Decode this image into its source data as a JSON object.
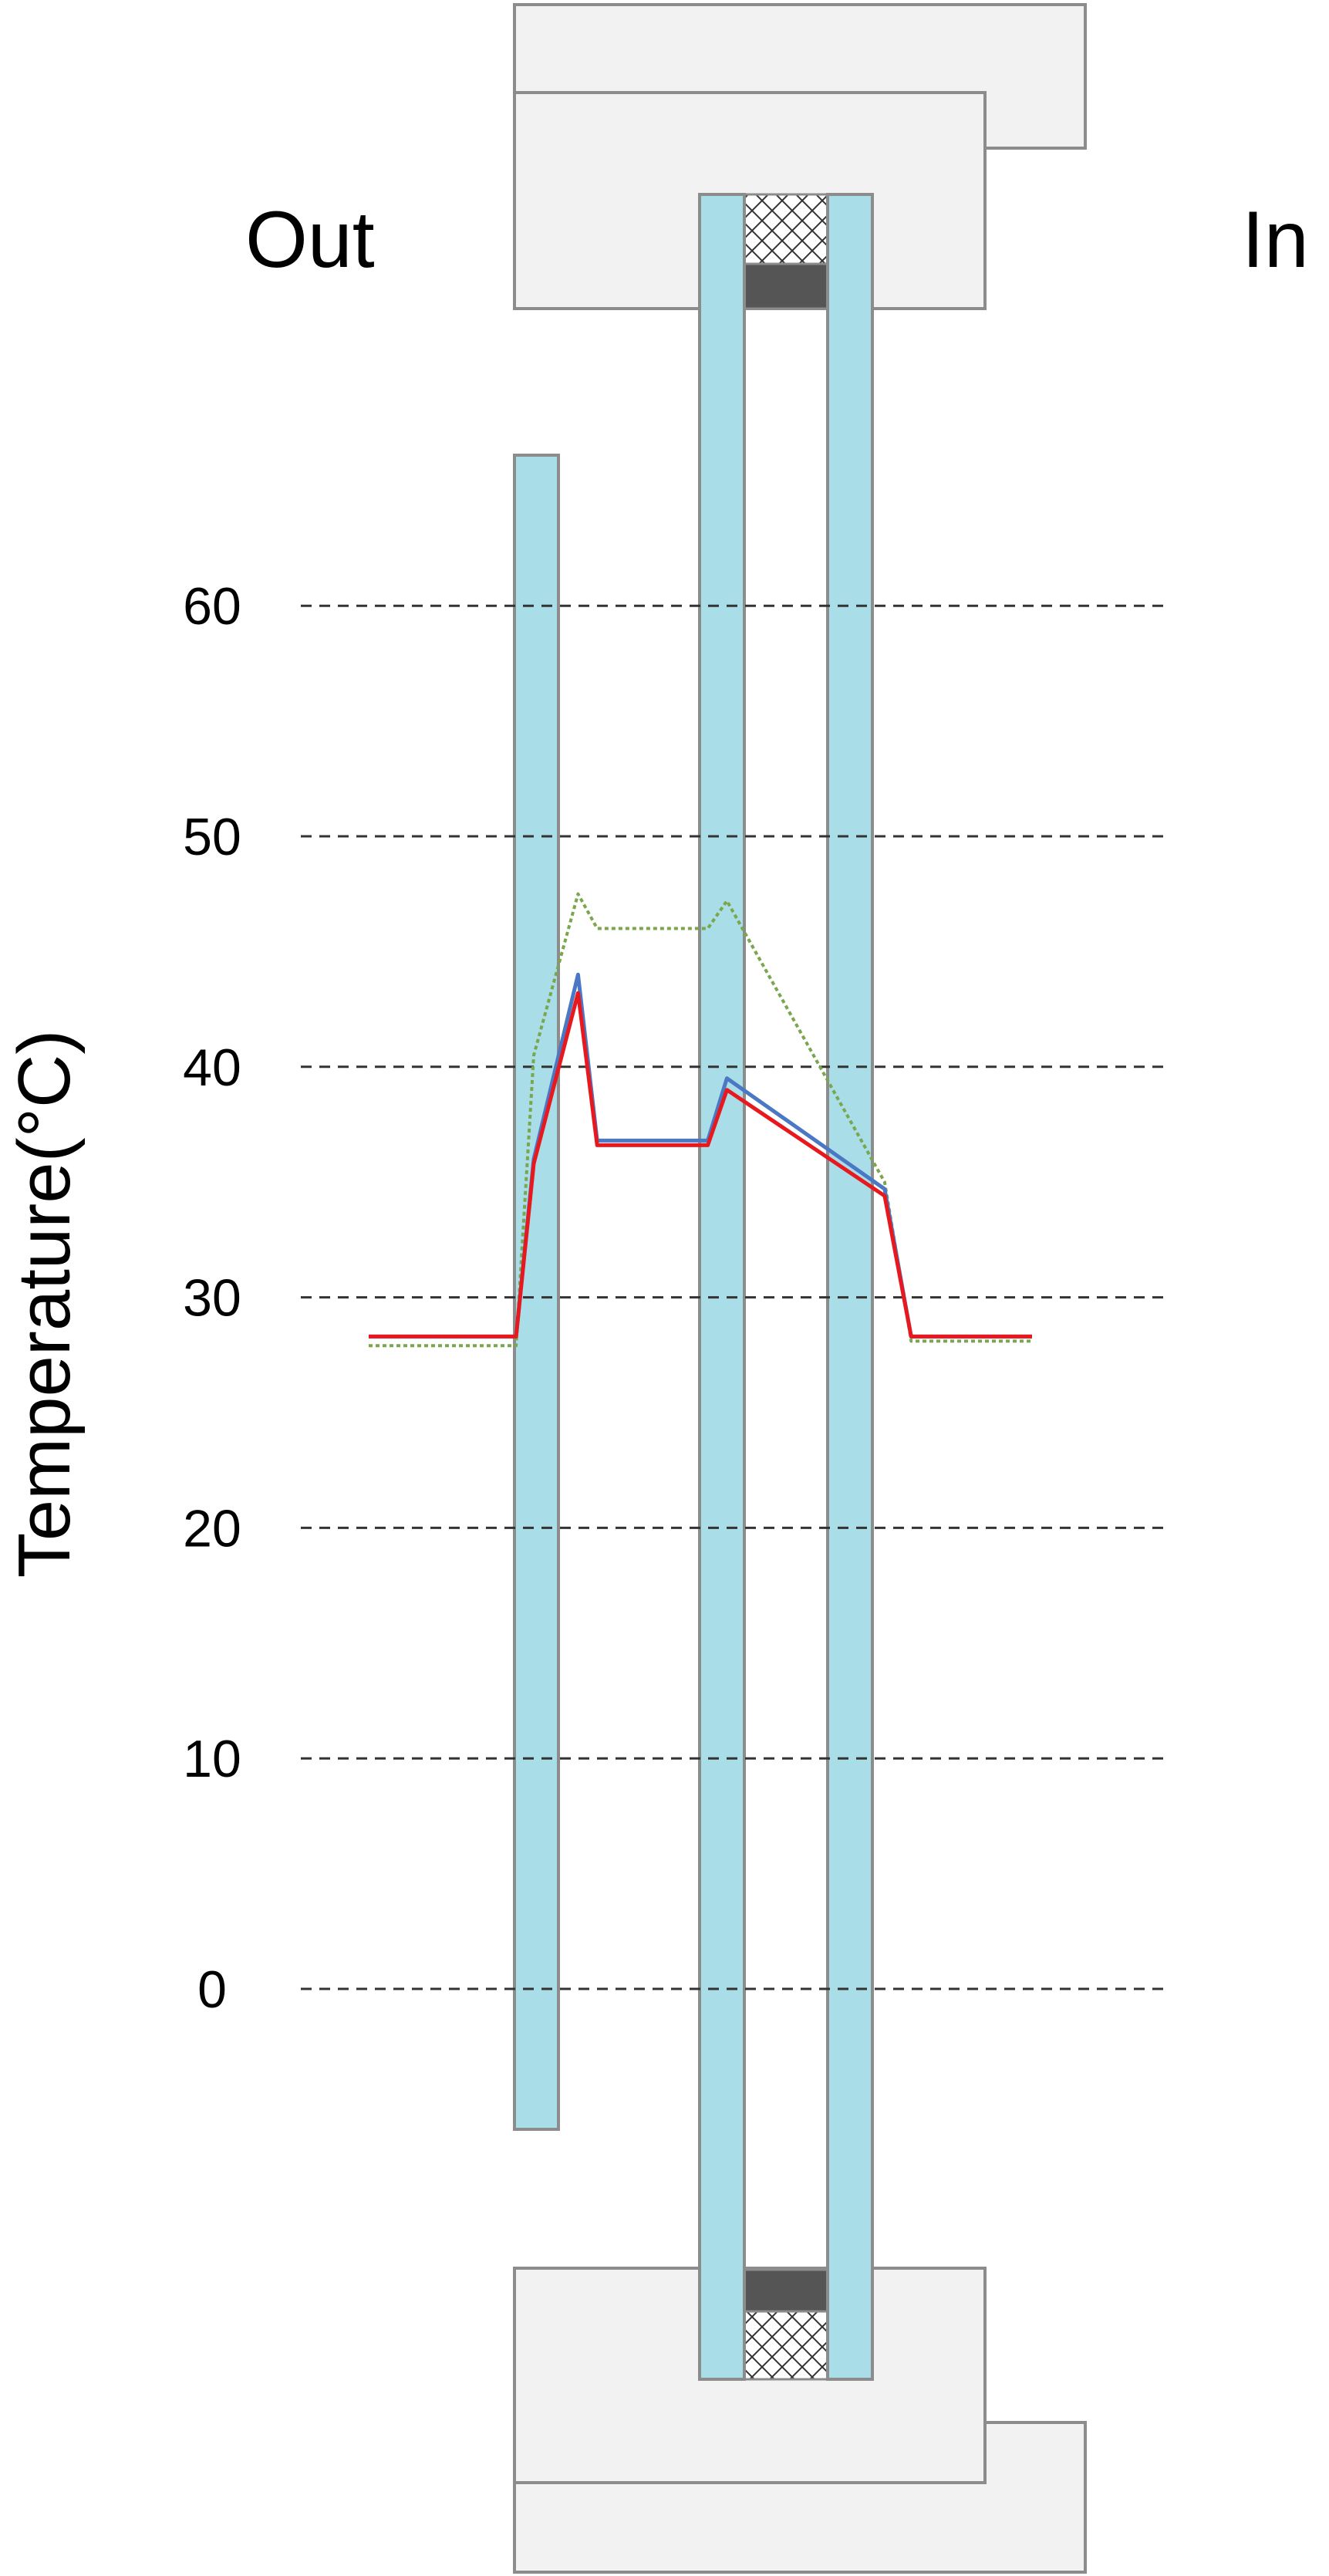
{
  "labels": {
    "outside": "Out",
    "inside": "In"
  },
  "colors": {
    "glass": "#a9dde8",
    "frame": "#f2f2f2",
    "outline": "#8c8c8c",
    "spacer": "#555555",
    "series_red": "#e8191e",
    "series_blue": "#4a78c4",
    "series_green": "#7aa64e",
    "grid": "#333333"
  },
  "chart_data": {
    "type": "line",
    "xlabel": "",
    "ylabel": "Temperature(°C)",
    "ylim": [
      -5,
      65
    ],
    "yticks": [
      0,
      10,
      20,
      30,
      40,
      50,
      60
    ],
    "ytick_labels": [
      "0",
      "10",
      "20",
      "30",
      "40",
      "50",
      "60"
    ],
    "grid": "horizontal dashed",
    "series": [
      {
        "color": "#7aa64e",
        "style": "dotted",
        "points": [
          [
            0,
            27.9
          ],
          [
            1.0,
            27.9
          ],
          [
            1.12,
            40.5
          ],
          [
            1.42,
            47.5
          ],
          [
            1.55,
            46.0
          ],
          [
            2.3,
            46.0
          ],
          [
            2.43,
            47.2
          ],
          [
            3.5,
            35.0
          ],
          [
            3.68,
            28.1
          ],
          [
            4.5,
            28.1
          ]
        ]
      },
      {
        "color": "#4a78c4",
        "style": "solid",
        "points": [
          [
            0,
            28.3
          ],
          [
            1.0,
            28.3
          ],
          [
            1.12,
            36.0
          ],
          [
            1.42,
            44.0
          ],
          [
            1.55,
            36.8
          ],
          [
            2.3,
            36.8
          ],
          [
            2.43,
            39.5
          ],
          [
            3.5,
            34.7
          ],
          [
            3.68,
            28.3
          ],
          [
            4.5,
            28.3
          ]
        ]
      },
      {
        "color": "#e8191e",
        "style": "solid",
        "points": [
          [
            0,
            28.3
          ],
          [
            1.0,
            28.3
          ],
          [
            1.12,
            35.8
          ],
          [
            1.42,
            43.2
          ],
          [
            1.55,
            36.6
          ],
          [
            2.3,
            36.6
          ],
          [
            2.43,
            39.0
          ],
          [
            3.5,
            34.4
          ],
          [
            3.68,
            28.3
          ],
          [
            4.5,
            28.3
          ]
        ]
      }
    ]
  }
}
